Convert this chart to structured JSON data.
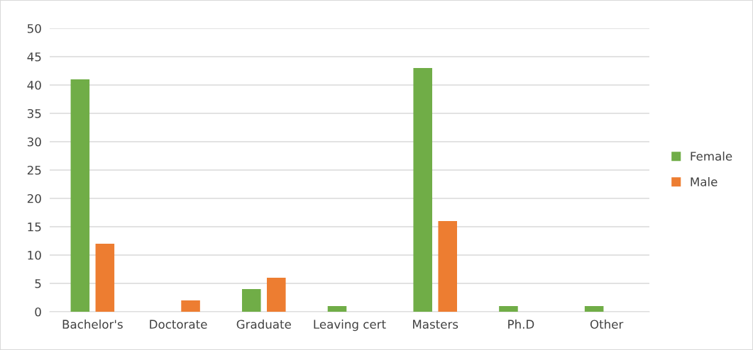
{
  "chart_data": {
    "type": "bar",
    "categories": [
      "Bachelor's",
      "Doctorate",
      "Graduate",
      "Leaving cert",
      "Masters",
      "Ph.D",
      "Other"
    ],
    "series": [
      {
        "name": "Female",
        "color": "#70ad47",
        "values": [
          41,
          0,
          4,
          1,
          43,
          1,
          1
        ]
      },
      {
        "name": "Male",
        "color": "#ed7d31",
        "values": [
          12,
          2,
          6,
          0,
          16,
          0,
          0
        ]
      }
    ],
    "ylim": [
      0,
      50
    ],
    "yticks": [
      0,
      5,
      10,
      15,
      20,
      25,
      30,
      35,
      40,
      45,
      50
    ],
    "grid": "y",
    "legend": "right"
  }
}
